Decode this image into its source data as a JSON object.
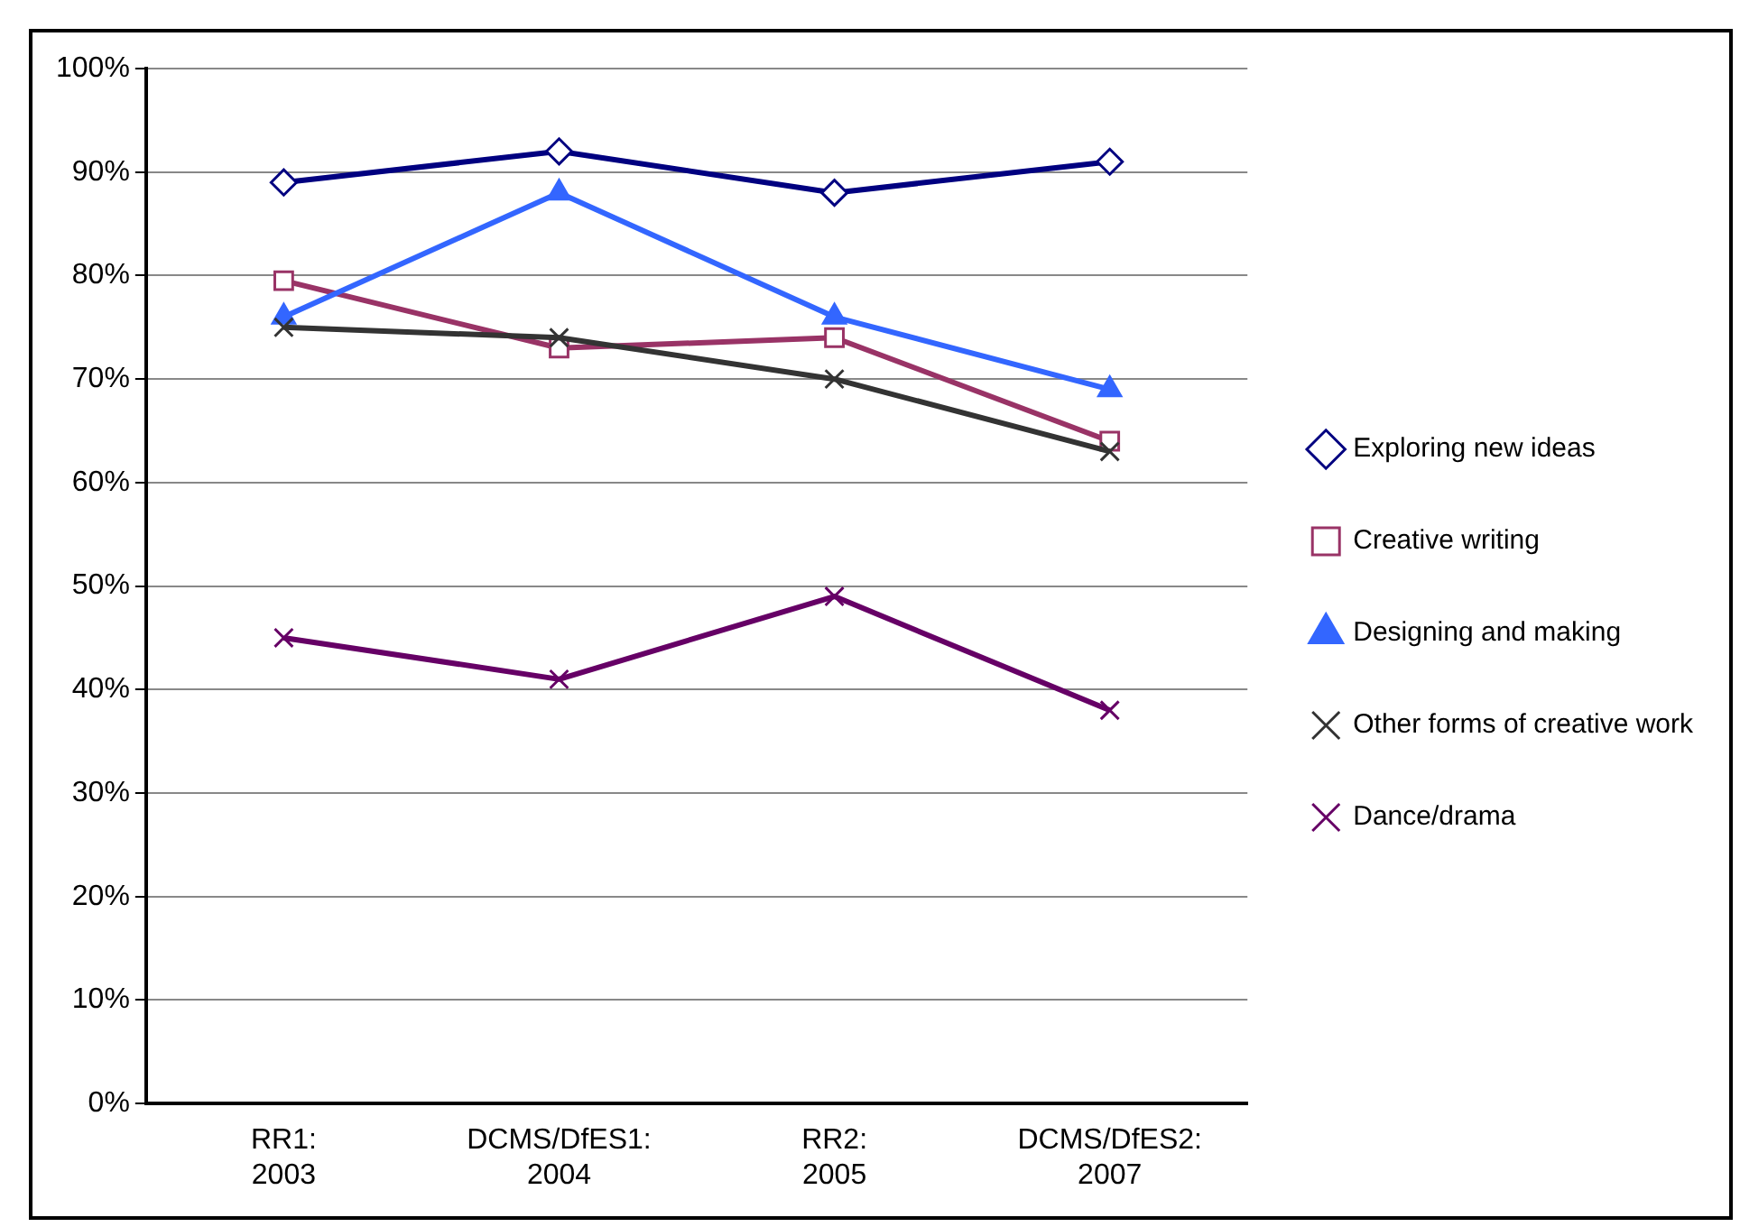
{
  "chart_data": {
    "type": "line",
    "categories": [
      "RR1: 2003",
      "DCMS/DfES1: 2004",
      "RR2: 2005",
      "DCMS/DfES2: 2007"
    ],
    "series": [
      {
        "name": "Exploring new ideas",
        "color": "#000080",
        "marker": "diamond",
        "values": [
          89,
          92,
          88,
          91
        ]
      },
      {
        "name": "Creative writing",
        "color": "#993366",
        "marker": "square",
        "values": [
          79.5,
          73,
          74,
          64
        ]
      },
      {
        "name": "Designing and making",
        "color": "#3366ff",
        "marker": "triangle",
        "values": [
          76,
          88,
          76,
          69
        ]
      },
      {
        "name": "Other forms of creative work",
        "color": "#333333",
        "marker": "cross",
        "values": [
          75,
          74,
          70,
          63
        ]
      },
      {
        "name": "Dance/drama",
        "color": "#660066",
        "marker": "cross",
        "values": [
          45,
          41,
          49,
          38
        ]
      }
    ],
    "ylim": [
      0,
      100
    ],
    "yticks": [
      {
        "value": 0,
        "label": "0%"
      },
      {
        "value": 10,
        "label": "10%"
      },
      {
        "value": 20,
        "label": "20%"
      },
      {
        "value": 30,
        "label": "30%"
      },
      {
        "value": 40,
        "label": "40%"
      },
      {
        "value": 50,
        "label": "50%"
      },
      {
        "value": 60,
        "label": "60%"
      },
      {
        "value": 70,
        "label": "70%"
      },
      {
        "value": 80,
        "label": "80%"
      },
      {
        "value": 90,
        "label": "90%"
      },
      {
        "value": 100,
        "label": "100%"
      }
    ],
    "grid": "y",
    "legend": "right",
    "line_style": "solid"
  }
}
